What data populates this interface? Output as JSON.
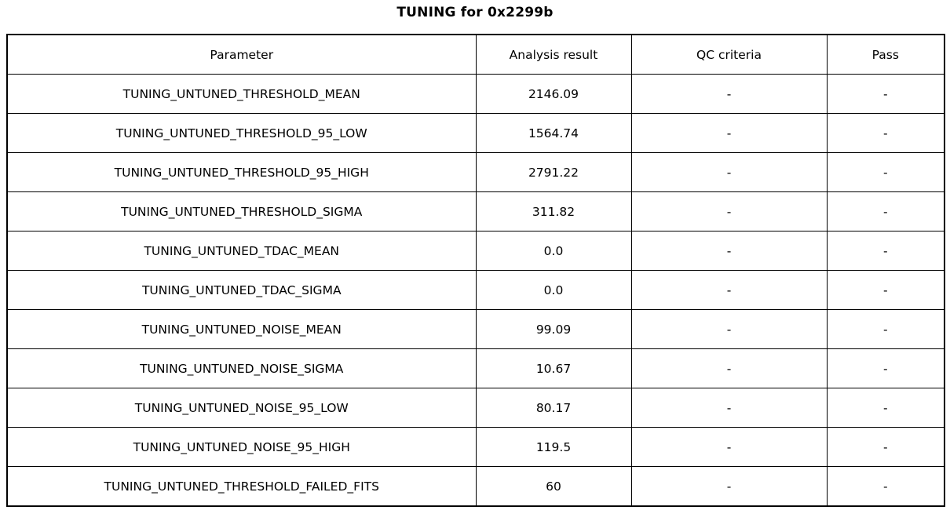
{
  "title": "TUNING for 0x2299b",
  "chart_data": {
    "type": "table",
    "title": "TUNING for 0x2299b",
    "columns": [
      "Parameter",
      "Analysis result",
      "QC criteria",
      "Pass"
    ],
    "rows": [
      [
        "TUNING_UNTUNED_THRESHOLD_MEAN",
        "2146.09",
        "-",
        "-"
      ],
      [
        "TUNING_UNTUNED_THRESHOLD_95_LOW",
        "1564.74",
        "-",
        "-"
      ],
      [
        "TUNING_UNTUNED_THRESHOLD_95_HIGH",
        "2791.22",
        "-",
        "-"
      ],
      [
        "TUNING_UNTUNED_THRESHOLD_SIGMA",
        "311.82",
        "-",
        "-"
      ],
      [
        "TUNING_UNTUNED_TDAC_MEAN",
        "0.0",
        "-",
        "-"
      ],
      [
        "TUNING_UNTUNED_TDAC_SIGMA",
        "0.0",
        "-",
        "-"
      ],
      [
        "TUNING_UNTUNED_NOISE_MEAN",
        "99.09",
        "-",
        "-"
      ],
      [
        "TUNING_UNTUNED_NOISE_SIGMA",
        "10.67",
        "-",
        "-"
      ],
      [
        "TUNING_UNTUNED_NOISE_95_LOW",
        "80.17",
        "-",
        "-"
      ],
      [
        "TUNING_UNTUNED_NOISE_95_HIGH",
        "119.5",
        "-",
        "-"
      ],
      [
        "TUNING_UNTUNED_THRESHOLD_FAILED_FITS",
        "60",
        "-",
        "-"
      ]
    ]
  }
}
